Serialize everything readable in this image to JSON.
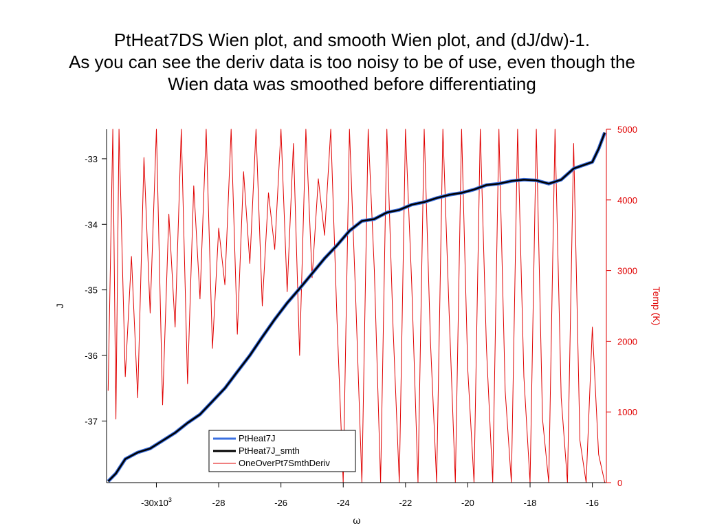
{
  "chart_data": {
    "type": "line",
    "title_lines": [
      "PtHeat7DS Wien plot, and smooth Wien plot, and (dJ/dw)-1.",
      "As you can see the deriv data is too noisy to be of use, even though the",
      "Wien data was smoothed before differentiating"
    ],
    "xlabel": "ω",
    "ylabel_left": "J",
    "ylabel_right": "Temp (K)",
    "x_ticks": [
      {
        "v": -30,
        "label": "-30x10",
        "sup": "3"
      },
      {
        "v": -28,
        "label": "-28"
      },
      {
        "v": -26,
        "label": "-26"
      },
      {
        "v": -24,
        "label": "-24"
      },
      {
        "v": -22,
        "label": "-22"
      },
      {
        "v": -20,
        "label": "-20"
      },
      {
        "v": -18,
        "label": "-18"
      },
      {
        "v": -16,
        "label": "-16"
      }
    ],
    "y_left_ticks": [
      -33,
      -34,
      -35,
      -36,
      -37
    ],
    "y_right_ticks": [
      0,
      1000,
      2000,
      3000,
      4000,
      5000
    ],
    "xlim": [
      -31.6,
      -15.55
    ],
    "ylim_left": [
      -37.94,
      -32.55
    ],
    "ylim_right": [
      0,
      5000
    ],
    "legend_position": "bottom-center",
    "colors": {
      "PtHeat7J": "#3a6fe0",
      "PtHeat7J_smth": "#000000",
      "OneOverPt7SmthDeriv": "#e00000"
    },
    "series": [
      {
        "name": "PtHeat7J",
        "axis": "left",
        "x": [
          -31.55,
          -31.3,
          -31.0,
          -30.6,
          -30.2,
          -29.8,
          -29.4,
          -29.0,
          -28.6,
          -28.2,
          -27.8,
          -27.4,
          -27.0,
          -26.6,
          -26.2,
          -25.8,
          -25.4,
          -25.0,
          -24.6,
          -24.2,
          -23.8,
          -23.4,
          -23.0,
          -22.6,
          -22.2,
          -21.8,
          -21.4,
          -21.0,
          -20.6,
          -20.2,
          -19.8,
          -19.4,
          -19.0,
          -18.6,
          -18.2,
          -17.8,
          -17.4,
          -17.0,
          -16.6,
          -16.3,
          -16.0,
          -15.8,
          -15.6
        ],
        "y": [
          -37.92,
          -37.8,
          -37.58,
          -37.48,
          -37.42,
          -37.3,
          -37.18,
          -37.03,
          -36.9,
          -36.7,
          -36.5,
          -36.25,
          -36.0,
          -35.72,
          -35.45,
          -35.2,
          -34.98,
          -34.75,
          -34.52,
          -34.32,
          -34.1,
          -33.95,
          -33.92,
          -33.82,
          -33.78,
          -33.7,
          -33.66,
          -33.6,
          -33.55,
          -33.52,
          -33.47,
          -33.4,
          -33.38,
          -33.34,
          -33.32,
          -33.33,
          -33.38,
          -33.32,
          -33.15,
          -33.1,
          -33.05,
          -32.85,
          -32.6
        ]
      },
      {
        "name": "PtHeat7J_smth",
        "axis": "left",
        "x": [
          -31.55,
          -31.3,
          -31.0,
          -30.6,
          -30.2,
          -29.8,
          -29.4,
          -29.0,
          -28.6,
          -28.2,
          -27.8,
          -27.4,
          -27.0,
          -26.6,
          -26.2,
          -25.8,
          -25.4,
          -25.0,
          -24.6,
          -24.2,
          -23.8,
          -23.4,
          -23.0,
          -22.6,
          -22.2,
          -21.8,
          -21.4,
          -21.0,
          -20.6,
          -20.2,
          -19.8,
          -19.4,
          -19.0,
          -18.6,
          -18.2,
          -17.8,
          -17.4,
          -17.0,
          -16.6,
          -16.3,
          -16.0,
          -15.8,
          -15.6
        ],
        "y": [
          -37.92,
          -37.8,
          -37.58,
          -37.48,
          -37.42,
          -37.3,
          -37.18,
          -37.03,
          -36.9,
          -36.7,
          -36.5,
          -36.25,
          -36.0,
          -35.72,
          -35.45,
          -35.2,
          -34.98,
          -34.75,
          -34.52,
          -34.32,
          -34.1,
          -33.95,
          -33.92,
          -33.82,
          -33.78,
          -33.7,
          -33.66,
          -33.6,
          -33.55,
          -33.52,
          -33.47,
          -33.4,
          -33.38,
          -33.34,
          -33.32,
          -33.33,
          -33.38,
          -33.32,
          -33.15,
          -33.1,
          -33.05,
          -32.85,
          -32.6
        ]
      },
      {
        "name": "OneOverPt7SmthDeriv",
        "axis": "right",
        "x": [
          -31.55,
          -31.4,
          -31.3,
          -31.2,
          -31.0,
          -30.8,
          -30.6,
          -30.4,
          -30.2,
          -30.0,
          -29.8,
          -29.6,
          -29.4,
          -29.2,
          -29.0,
          -28.8,
          -28.6,
          -28.4,
          -28.2,
          -28.0,
          -27.8,
          -27.6,
          -27.4,
          -27.2,
          -27.0,
          -26.8,
          -26.6,
          -26.4,
          -26.2,
          -26.0,
          -25.8,
          -25.6,
          -25.4,
          -25.2,
          -25.0,
          -24.8,
          -24.6,
          -24.4,
          -24.2,
          -24.0,
          -23.8,
          -23.6,
          -23.4,
          -23.2,
          -23.0,
          -22.8,
          -22.6,
          -22.4,
          -22.2,
          -22.0,
          -21.8,
          -21.6,
          -21.4,
          -21.2,
          -21.0,
          -20.8,
          -20.6,
          -20.4,
          -20.2,
          -20.0,
          -19.8,
          -19.6,
          -19.4,
          -19.2,
          -19.0,
          -18.8,
          -18.6,
          -18.4,
          -18.2,
          -18.0,
          -17.8,
          -17.6,
          -17.4,
          -17.2,
          -17.0,
          -16.8,
          -16.6,
          -16.4,
          -16.2,
          -16.0,
          -15.8,
          -15.6
        ],
        "y": [
          1300,
          5000,
          900,
          5000,
          1500,
          3200,
          1200,
          4600,
          2400,
          5000,
          1100,
          3800,
          2200,
          5000,
          1400,
          4200,
          2600,
          5000,
          1900,
          3600,
          2800,
          5000,
          2100,
          4400,
          3100,
          5000,
          2500,
          4100,
          3300,
          5000,
          2700,
          4800,
          1800,
          5000,
          2900,
          4300,
          3500,
          5000,
          2300,
          0,
          5000,
          2600,
          0,
          5000,
          3000,
          0,
          5000,
          2200,
          0,
          5000,
          2800,
          0,
          5000,
          2000,
          0,
          5000,
          2400,
          0,
          5000,
          1600,
          0,
          5000,
          1900,
          0,
          5000,
          1300,
          0,
          5000,
          1500,
          0,
          5000,
          900,
          0,
          5000,
          1200,
          0,
          4800,
          600,
          0,
          2200,
          400,
          0
        ]
      }
    ]
  }
}
